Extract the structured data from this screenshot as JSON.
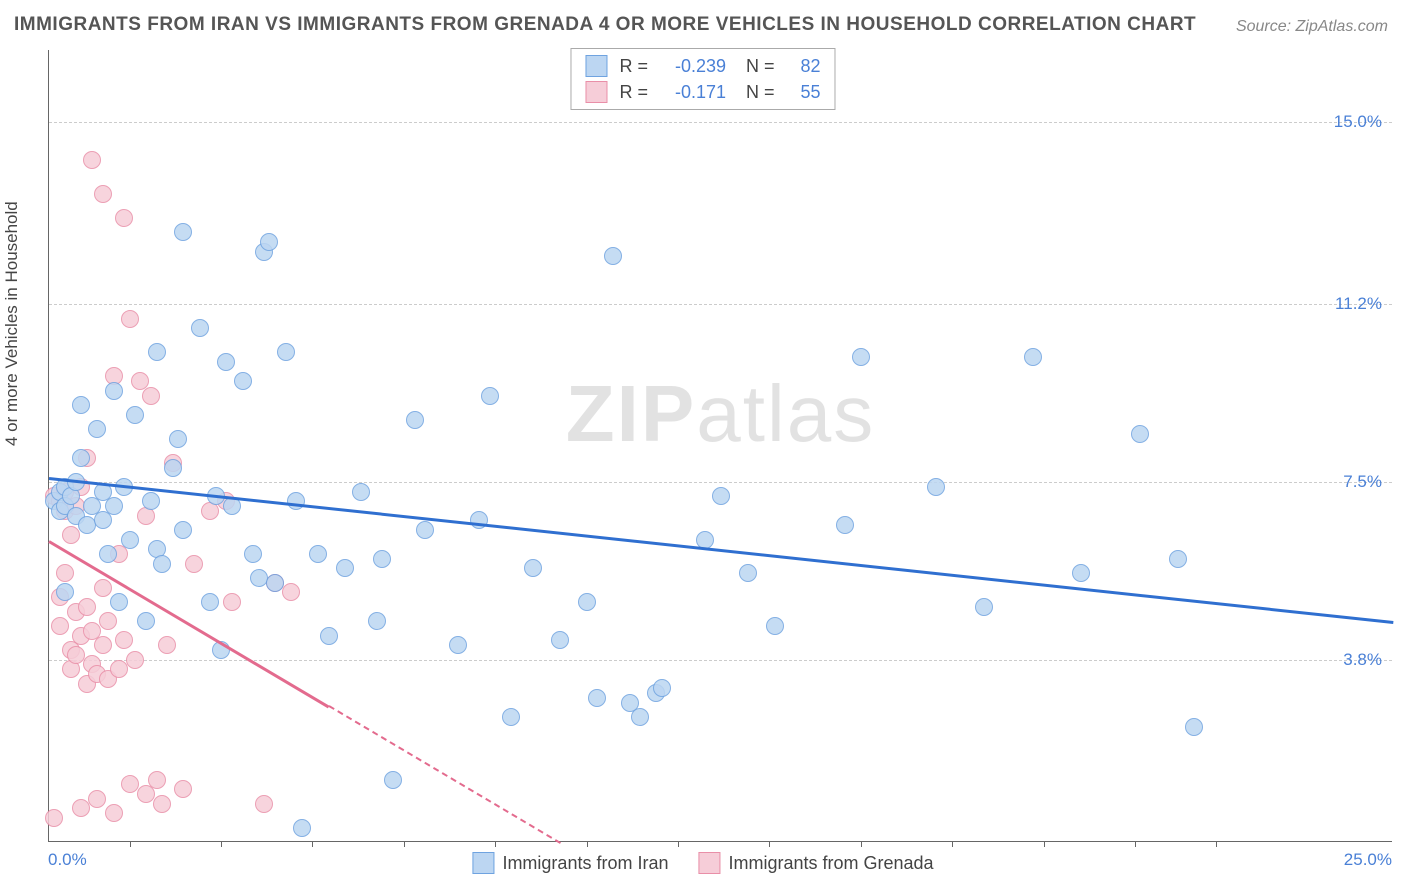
{
  "title": "IMMIGRANTS FROM IRAN VS IMMIGRANTS FROM GRENADA 4 OR MORE VEHICLES IN HOUSEHOLD CORRELATION CHART",
  "source": "Source: ZipAtlas.com",
  "watermark_a": "ZIP",
  "watermark_b": "atlas",
  "y_axis_label": "4 or more Vehicles in Household",
  "x_min_label": "0.0%",
  "x_max_label": "25.0%",
  "chart": {
    "type": "scatter",
    "xlim": [
      0,
      25
    ],
    "ylim": [
      0,
      16.5
    ],
    "y_ticks": [
      3.8,
      7.5,
      11.2,
      15.0
    ],
    "y_tick_labels": [
      "3.8%",
      "7.5%",
      "11.2%",
      "15.0%"
    ],
    "x_tick_positions": [
      1.5,
      3.2,
      4.9,
      6.6,
      8.3,
      10.0,
      11.7,
      13.4,
      15.1,
      16.8,
      18.5,
      20.2,
      21.7
    ],
    "grid_color": "#cccccc",
    "background_color": "#ffffff",
    "point_radius": 9,
    "series": [
      {
        "name": "Immigrants from Iran",
        "fill": "#bcd6f2",
        "stroke": "#6fa3e0",
        "line_color": "#2f6fd0",
        "R": "-0.239",
        "N": "82",
        "trend": {
          "x1": 0,
          "y1": 7.6,
          "x2": 25,
          "y2": 4.6,
          "solid_until_x": 25
        },
        "points": [
          [
            0.1,
            7.1
          ],
          [
            0.2,
            6.9
          ],
          [
            0.2,
            7.3
          ],
          [
            0.3,
            7.0
          ],
          [
            0.3,
            7.4
          ],
          [
            0.3,
            5.2
          ],
          [
            0.4,
            7.2
          ],
          [
            0.5,
            7.5
          ],
          [
            0.5,
            6.8
          ],
          [
            0.6,
            8.0
          ],
          [
            0.6,
            9.1
          ],
          [
            0.7,
            6.6
          ],
          [
            0.8,
            7.0
          ],
          [
            0.9,
            8.6
          ],
          [
            1.0,
            7.3
          ],
          [
            1.0,
            6.7
          ],
          [
            1.1,
            6.0
          ],
          [
            1.2,
            9.4
          ],
          [
            1.2,
            7.0
          ],
          [
            1.3,
            5.0
          ],
          [
            1.4,
            7.4
          ],
          [
            1.5,
            6.3
          ],
          [
            1.6,
            8.9
          ],
          [
            1.8,
            4.6
          ],
          [
            1.9,
            7.1
          ],
          [
            2.0,
            10.2
          ],
          [
            2.0,
            6.1
          ],
          [
            2.1,
            5.8
          ],
          [
            2.3,
            7.8
          ],
          [
            2.4,
            8.4
          ],
          [
            2.5,
            12.7
          ],
          [
            2.5,
            6.5
          ],
          [
            2.8,
            10.7
          ],
          [
            3.0,
            5.0
          ],
          [
            3.1,
            7.2
          ],
          [
            3.2,
            4.0
          ],
          [
            3.3,
            10.0
          ],
          [
            3.4,
            7.0
          ],
          [
            3.6,
            9.6
          ],
          [
            3.8,
            6.0
          ],
          [
            3.9,
            5.5
          ],
          [
            4.0,
            12.3
          ],
          [
            4.1,
            12.5
          ],
          [
            4.2,
            5.4
          ],
          [
            4.4,
            10.2
          ],
          [
            4.6,
            7.1
          ],
          [
            4.7,
            0.3
          ],
          [
            5.0,
            6.0
          ],
          [
            5.2,
            4.3
          ],
          [
            5.5,
            5.7
          ],
          [
            5.8,
            7.3
          ],
          [
            6.1,
            4.6
          ],
          [
            6.2,
            5.9
          ],
          [
            6.4,
            1.3
          ],
          [
            6.8,
            8.8
          ],
          [
            7.0,
            6.5
          ],
          [
            7.6,
            4.1
          ],
          [
            8.0,
            6.7
          ],
          [
            8.2,
            9.3
          ],
          [
            8.6,
            2.6
          ],
          [
            9.0,
            5.7
          ],
          [
            9.5,
            4.2
          ],
          [
            10.0,
            5.0
          ],
          [
            10.2,
            3.0
          ],
          [
            10.5,
            12.2
          ],
          [
            10.8,
            2.9
          ],
          [
            11.0,
            2.6
          ],
          [
            11.3,
            3.1
          ],
          [
            11.4,
            3.2
          ],
          [
            12.2,
            6.3
          ],
          [
            12.5,
            7.2
          ],
          [
            13.0,
            5.6
          ],
          [
            13.5,
            4.5
          ],
          [
            14.8,
            6.6
          ],
          [
            15.1,
            10.1
          ],
          [
            16.5,
            7.4
          ],
          [
            17.4,
            4.9
          ],
          [
            18.3,
            10.1
          ],
          [
            19.2,
            5.6
          ],
          [
            20.3,
            8.5
          ],
          [
            21.0,
            5.9
          ],
          [
            21.3,
            2.4
          ]
        ]
      },
      {
        "name": "Immigrants from Grenada",
        "fill": "#f6cdd8",
        "stroke": "#e98fa8",
        "line_color": "#e36b8e",
        "R": "-0.171",
        "N": "55",
        "trend": {
          "x1": 0,
          "y1": 6.3,
          "x2": 9.5,
          "y2": 0,
          "solid_until_x": 5.2
        },
        "points": [
          [
            0.1,
            0.5
          ],
          [
            0.1,
            7.2
          ],
          [
            0.2,
            4.5
          ],
          [
            0.2,
            7.1
          ],
          [
            0.2,
            5.1
          ],
          [
            0.3,
            7.3
          ],
          [
            0.3,
            5.6
          ],
          [
            0.3,
            6.9
          ],
          [
            0.4,
            4.0
          ],
          [
            0.4,
            6.4
          ],
          [
            0.4,
            3.6
          ],
          [
            0.5,
            7.0
          ],
          [
            0.5,
            3.9
          ],
          [
            0.5,
            4.8
          ],
          [
            0.6,
            0.7
          ],
          [
            0.6,
            4.3
          ],
          [
            0.6,
            7.4
          ],
          [
            0.7,
            4.9
          ],
          [
            0.7,
            3.3
          ],
          [
            0.7,
            8.0
          ],
          [
            0.8,
            3.7
          ],
          [
            0.8,
            4.4
          ],
          [
            0.8,
            14.2
          ],
          [
            0.9,
            3.5
          ],
          [
            0.9,
            0.9
          ],
          [
            1.0,
            4.1
          ],
          [
            1.0,
            13.5
          ],
          [
            1.0,
            5.3
          ],
          [
            1.1,
            3.4
          ],
          [
            1.1,
            4.6
          ],
          [
            1.2,
            9.7
          ],
          [
            1.2,
            0.6
          ],
          [
            1.3,
            3.6
          ],
          [
            1.3,
            6.0
          ],
          [
            1.4,
            4.2
          ],
          [
            1.4,
            13.0
          ],
          [
            1.5,
            10.9
          ],
          [
            1.5,
            1.2
          ],
          [
            1.6,
            3.8
          ],
          [
            1.7,
            9.6
          ],
          [
            1.8,
            1.0
          ],
          [
            1.8,
            6.8
          ],
          [
            1.9,
            9.3
          ],
          [
            2.0,
            1.3
          ],
          [
            2.1,
            0.8
          ],
          [
            2.2,
            4.1
          ],
          [
            2.3,
            7.9
          ],
          [
            2.5,
            1.1
          ],
          [
            2.7,
            5.8
          ],
          [
            3.0,
            6.9
          ],
          [
            3.3,
            7.1
          ],
          [
            3.4,
            5.0
          ],
          [
            4.0,
            0.8
          ],
          [
            4.2,
            5.4
          ],
          [
            4.5,
            5.2
          ]
        ]
      }
    ]
  },
  "legend": {
    "R_label": "R =",
    "N_label": "N ="
  }
}
